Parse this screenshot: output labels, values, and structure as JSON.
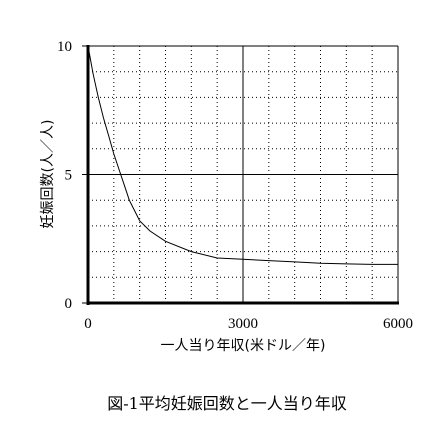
{
  "chart_data": {
    "type": "line",
    "title": "",
    "caption": "図-1平均妊娠回数と一人当り年収",
    "xlabel": "一人当り年収(米ドル／年)",
    "ylabel": "妊娠回数(人／人)",
    "xlim": [
      0,
      6000
    ],
    "ylim": [
      0,
      10
    ],
    "x_ticks": [
      0,
      3000,
      6000
    ],
    "x_tick_labels": [
      "0",
      "3000",
      "6000"
    ],
    "y_ticks": [
      0,
      5,
      10
    ],
    "y_tick_labels": [
      "0",
      "5",
      "10"
    ],
    "grid": "dotted minor grid (500 x-step, 1 y-step) with solid lines at x=3000 and y=5",
    "series": [
      {
        "x": [
          0,
          100,
          200,
          300,
          400,
          500,
          600,
          700,
          800,
          900,
          1000,
          1200,
          1500,
          2000,
          2500,
          3000,
          3500,
          4000,
          4500,
          5000,
          5500,
          6000
        ],
        "y": [
          10,
          8.9,
          8.0,
          7.2,
          6.5,
          5.8,
          5.2,
          4.6,
          4.0,
          3.6,
          3.2,
          2.8,
          2.4,
          2.0,
          1.75,
          1.7,
          1.65,
          1.6,
          1.55,
          1.52,
          1.5,
          1.5
        ]
      }
    ]
  }
}
